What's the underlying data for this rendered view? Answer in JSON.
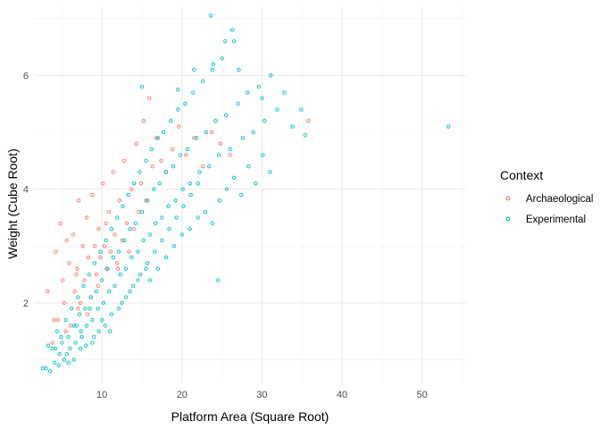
{
  "chart_data": {
    "type": "scatter",
    "xlabel": "Platform Area (Square Root)",
    "ylabel": "Weight (Cube Root)",
    "xlim": [
      1.5,
      55.5
    ],
    "ylim": [
      0.6,
      7.2
    ],
    "x_ticks": [
      10,
      20,
      30,
      40,
      50
    ],
    "y_ticks": [
      2,
      4,
      6
    ],
    "grid": true,
    "legend": {
      "title": "Context",
      "placement": "right",
      "entries": [
        {
          "name": "Archaeological",
          "color": "#F8766D"
        },
        {
          "name": "Experimental",
          "color": "#00BFC4"
        }
      ]
    },
    "series": [
      {
        "name": "Archaeological",
        "color": "#F8766D",
        "points": [
          [
            3.2,
            2.2
          ],
          [
            3.8,
            1.3
          ],
          [
            4.2,
            2.9
          ],
          [
            4.5,
            1.7
          ],
          [
            4.8,
            3.4
          ],
          [
            5.1,
            2.4
          ],
          [
            5.3,
            2.0
          ],
          [
            5.6,
            3.1
          ],
          [
            5.9,
            2.7
          ],
          [
            6.1,
            1.6
          ],
          [
            6.4,
            3.2
          ],
          [
            6.6,
            2.2
          ],
          [
            6.9,
            2.6
          ],
          [
            7.1,
            3.8
          ],
          [
            7.3,
            2.0
          ],
          [
            7.6,
            3.0
          ],
          [
            7.8,
            2.4
          ],
          [
            8.1,
            3.5
          ],
          [
            8.3,
            2.8
          ],
          [
            8.6,
            2.1
          ],
          [
            8.8,
            3.9
          ],
          [
            9.1,
            3.0
          ],
          [
            9.3,
            2.5
          ],
          [
            9.6,
            3.3
          ],
          [
            9.8,
            2.8
          ],
          [
            10.1,
            4.1
          ],
          [
            10.3,
            3.0
          ],
          [
            10.6,
            2.6
          ],
          [
            10.9,
            3.6
          ],
          [
            11.1,
            2.9
          ],
          [
            11.4,
            4.3
          ],
          [
            11.6,
            3.2
          ],
          [
            11.9,
            2.7
          ],
          [
            12.2,
            3.8
          ],
          [
            12.5,
            3.1
          ],
          [
            12.8,
            4.5
          ],
          [
            13.1,
            3.4
          ],
          [
            13.4,
            2.9
          ],
          [
            13.7,
            4.0
          ],
          [
            14.0,
            3.3
          ],
          [
            14.3,
            4.8
          ],
          [
            14.6,
            3.6
          ],
          [
            14.9,
            4.1
          ],
          [
            15.2,
            5.2
          ],
          [
            15.5,
            3.8
          ],
          [
            15.9,
            5.6
          ],
          [
            16.3,
            4.4
          ],
          [
            16.8,
            4.9
          ],
          [
            17.4,
            4.5
          ],
          [
            18.0,
            4.3
          ],
          [
            18.8,
            4.7
          ],
          [
            19.6,
            5.1
          ],
          [
            20.5,
            4.6
          ],
          [
            21.5,
            4.9
          ],
          [
            22.6,
            4.4
          ],
          [
            23.7,
            5.0
          ],
          [
            24.8,
            4.8
          ],
          [
            26.0,
            4.6
          ],
          [
            12.0,
            2.6
          ],
          [
            9.5,
            2.3
          ],
          [
            7.0,
            1.9
          ],
          [
            5.5,
            1.5
          ],
          [
            4.0,
            1.7
          ],
          [
            6.8,
            2.5
          ],
          [
            8.2,
            1.8
          ],
          [
            10.5,
            3.4
          ],
          [
            35.8,
            5.2
          ]
        ]
      },
      {
        "name": "Experimental",
        "color": "#00BFC4",
        "points": [
          [
            2.6,
            0.85
          ],
          [
            3.0,
            0.85
          ],
          [
            3.5,
            0.8
          ],
          [
            3.8,
            1.2
          ],
          [
            4.1,
            0.95
          ],
          [
            4.4,
            1.5
          ],
          [
            4.7,
            1.1
          ],
          [
            5.0,
            1.3
          ],
          [
            5.3,
            1.0
          ],
          [
            5.5,
            1.7
          ],
          [
            5.8,
            1.4
          ],
          [
            6.0,
            1.2
          ],
          [
            6.2,
            1.9
          ],
          [
            6.5,
            1.6
          ],
          [
            6.7,
            1.3
          ],
          [
            7.0,
            2.1
          ],
          [
            7.2,
            1.8
          ],
          [
            7.4,
            1.5
          ],
          [
            7.7,
            2.3
          ],
          [
            7.9,
            1.9
          ],
          [
            8.1,
            1.6
          ],
          [
            8.4,
            2.5
          ],
          [
            8.6,
            2.1
          ],
          [
            8.8,
            1.7
          ],
          [
            9.1,
            2.7
          ],
          [
            9.3,
            2.2
          ],
          [
            9.5,
            1.9
          ],
          [
            9.8,
            2.9
          ],
          [
            10.0,
            2.4
          ],
          [
            10.2,
            2.0
          ],
          [
            10.5,
            3.1
          ],
          [
            10.7,
            2.6
          ],
          [
            10.9,
            2.2
          ],
          [
            11.2,
            3.3
          ],
          [
            11.4,
            2.8
          ],
          [
            11.6,
            2.3
          ],
          [
            11.9,
            3.5
          ],
          [
            12.1,
            2.9
          ],
          [
            12.3,
            2.5
          ],
          [
            12.6,
            3.7
          ],
          [
            12.8,
            3.1
          ],
          [
            13.0,
            2.6
          ],
          [
            13.3,
            3.9
          ],
          [
            13.5,
            3.3
          ],
          [
            13.7,
            2.8
          ],
          [
            14.0,
            4.1
          ],
          [
            14.2,
            3.4
          ],
          [
            14.5,
            2.9
          ],
          [
            14.7,
            4.3
          ],
          [
            15.0,
            3.6
          ],
          [
            15.2,
            3.1
          ],
          [
            15.5,
            4.5
          ],
          [
            15.7,
            3.8
          ],
          [
            16.0,
            3.2
          ],
          [
            16.2,
            4.7
          ],
          [
            16.5,
            4.0
          ],
          [
            16.7,
            3.4
          ],
          [
            17.0,
            4.9
          ],
          [
            17.2,
            4.1
          ],
          [
            17.5,
            3.5
          ],
          [
            17.7,
            5.0
          ],
          [
            18.0,
            4.3
          ],
          [
            18.3,
            3.7
          ],
          [
            18.6,
            5.2
          ],
          [
            18.9,
            4.4
          ],
          [
            19.2,
            3.8
          ],
          [
            19.5,
            5.4
          ],
          [
            19.8,
            4.6
          ],
          [
            20.1,
            4.0
          ],
          [
            20.4,
            5.5
          ],
          [
            20.7,
            4.7
          ],
          [
            21.0,
            4.1
          ],
          [
            21.4,
            5.7
          ],
          [
            21.8,
            4.9
          ],
          [
            22.2,
            4.3
          ],
          [
            22.6,
            5.9
          ],
          [
            23.0,
            5.0
          ],
          [
            23.4,
            4.4
          ],
          [
            23.8,
            6.1
          ],
          [
            24.2,
            5.2
          ],
          [
            24.6,
            4.6
          ],
          [
            25.0,
            6.3
          ],
          [
            25.5,
            5.3
          ],
          [
            26.0,
            4.7
          ],
          [
            26.5,
            6.6
          ],
          [
            27.0,
            5.5
          ],
          [
            27.6,
            4.9
          ],
          [
            28.2,
            5.7
          ],
          [
            28.9,
            5.0
          ],
          [
            29.6,
            5.8
          ],
          [
            30.3,
            5.2
          ],
          [
            31.1,
            6.0
          ],
          [
            31.9,
            5.4
          ],
          [
            32.8,
            5.7
          ],
          [
            33.8,
            5.1
          ],
          [
            34.9,
            5.4
          ],
          [
            23.6,
            7.05
          ],
          [
            26.3,
            6.8
          ],
          [
            25.4,
            6.6
          ],
          [
            23.9,
            6.2
          ],
          [
            21.5,
            6.1
          ],
          [
            27.1,
            6.1
          ],
          [
            30.0,
            5.6
          ],
          [
            15.0,
            5.8
          ],
          [
            19.5,
            5.75
          ],
          [
            53.3,
            5.1
          ],
          [
            35.4,
            4.95
          ],
          [
            24.5,
            2.4
          ],
          [
            3.3,
            1.25
          ],
          [
            4.6,
            0.9
          ],
          [
            5.8,
            0.95
          ],
          [
            6.5,
            1.0
          ],
          [
            7.3,
            1.2
          ],
          [
            8.0,
            1.25
          ],
          [
            8.8,
            1.3
          ],
          [
            9.6,
            1.5
          ],
          [
            10.4,
            1.6
          ],
          [
            11.2,
            1.8
          ],
          [
            12.1,
            1.9
          ],
          [
            13.0,
            2.1
          ],
          [
            13.9,
            2.3
          ],
          [
            14.8,
            2.5
          ],
          [
            15.7,
            2.7
          ],
          [
            16.6,
            2.9
          ],
          [
            17.5,
            3.1
          ],
          [
            18.4,
            3.3
          ],
          [
            19.3,
            3.5
          ],
          [
            20.2,
            3.7
          ],
          [
            21.1,
            3.9
          ],
          [
            22.0,
            4.1
          ],
          [
            22.9,
            3.6
          ],
          [
            23.8,
            3.4
          ],
          [
            24.7,
            3.8
          ],
          [
            25.6,
            4.0
          ],
          [
            26.5,
            4.2
          ],
          [
            27.4,
            3.9
          ],
          [
            28.3,
            4.4
          ],
          [
            29.2,
            4.1
          ],
          [
            30.1,
            4.6
          ],
          [
            31.0,
            4.3
          ],
          [
            16.0,
            2.4
          ],
          [
            17.0,
            2.6
          ],
          [
            18.0,
            2.8
          ],
          [
            19.0,
            3.0
          ],
          [
            20.0,
            3.2
          ],
          [
            21.0,
            3.3
          ],
          [
            22.0,
            3.5
          ],
          [
            12.5,
            2.0
          ],
          [
            13.5,
            2.2
          ],
          [
            14.5,
            2.4
          ],
          [
            15.5,
            2.6
          ],
          [
            9.0,
            1.4
          ],
          [
            10.0,
            1.7
          ],
          [
            11.0,
            1.5
          ],
          [
            7.5,
            1.4
          ],
          [
            8.5,
            1.9
          ],
          [
            6.8,
            1.6
          ],
          [
            5.6,
            1.1
          ],
          [
            4.9,
            1.4
          ],
          [
            4.2,
            1.2
          ]
        ]
      }
    ]
  }
}
